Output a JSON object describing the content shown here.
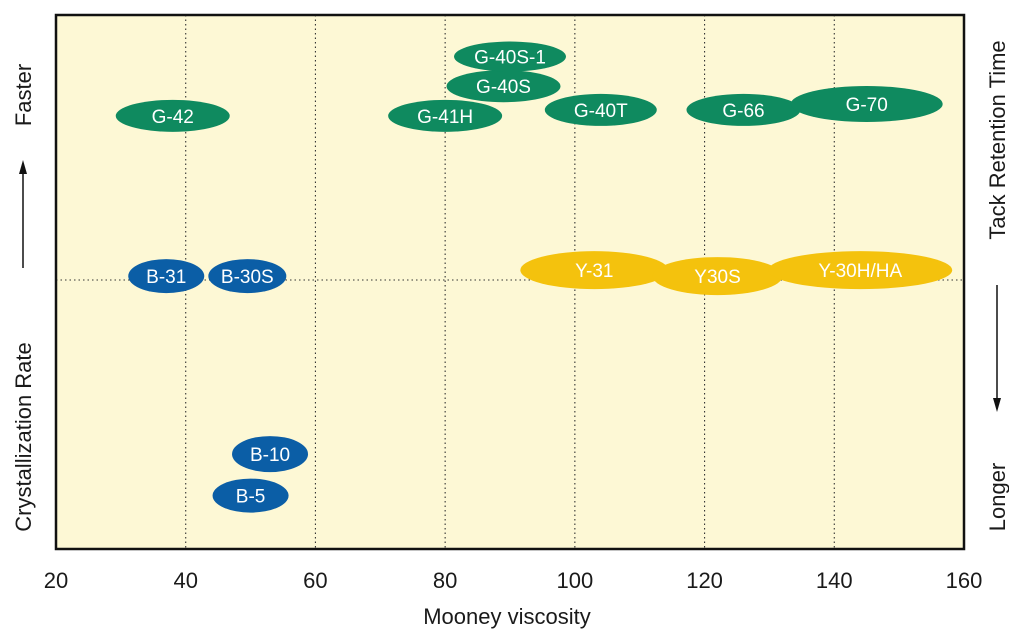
{
  "chart_data": {
    "type": "scatter",
    "title": "",
    "xlabel": "Mooney viscosity",
    "xlim": [
      20,
      160
    ],
    "xticks": [
      20,
      40,
      60,
      80,
      100,
      120,
      140,
      160
    ],
    "vgrid_at": [
      40,
      60,
      80,
      100,
      120,
      140
    ],
    "hgrid_at": "divider between faster and slower crystallization groups",
    "grid": "dotted",
    "colors": {
      "background": "#fdf8d5",
      "green": "#0f8a5f",
      "blue": "#0b5ea6",
      "yellow": "#f4c20d",
      "frame": "#111111"
    },
    "left_axis": {
      "label_top": "Faster",
      "label_bottom": "Crystallization Rate"
    },
    "right_axis": {
      "label_top": "Tack Retention Time",
      "label_bottom": "Longer"
    },
    "series": [
      {
        "color": "green",
        "points": [
          {
            "label": "G-42",
            "x": 38,
            "y": 7.3
          },
          {
            "label": "G-41H",
            "x": 80,
            "y": 7.3
          },
          {
            "label": "G-40S",
            "x": 89,
            "y": 7.8
          },
          {
            "label": "G-40S-1",
            "x": 90,
            "y": 8.3
          },
          {
            "label": "G-40T",
            "x": 104,
            "y": 7.4
          },
          {
            "label": "G-66",
            "x": 126,
            "y": 7.4
          },
          {
            "label": "G-70",
            "x": 145,
            "y": 7.5
          }
        ]
      },
      {
        "color": "blue",
        "points": [
          {
            "label": "B-31",
            "x": 37,
            "y": 4.6
          },
          {
            "label": "B-30S",
            "x": 49.5,
            "y": 4.6
          },
          {
            "label": "B-10",
            "x": 53,
            "y": 1.6
          },
          {
            "label": "B-5",
            "x": 50,
            "y": 0.9
          }
        ]
      },
      {
        "color": "yellow",
        "points": [
          {
            "label": "Y-31",
            "x": 103,
            "y": 4.7
          },
          {
            "label": "Y30S",
            "x": 122,
            "y": 4.6
          },
          {
            "label": "Y-30H/HA",
            "x": 144,
            "y": 4.7
          }
        ]
      }
    ]
  }
}
